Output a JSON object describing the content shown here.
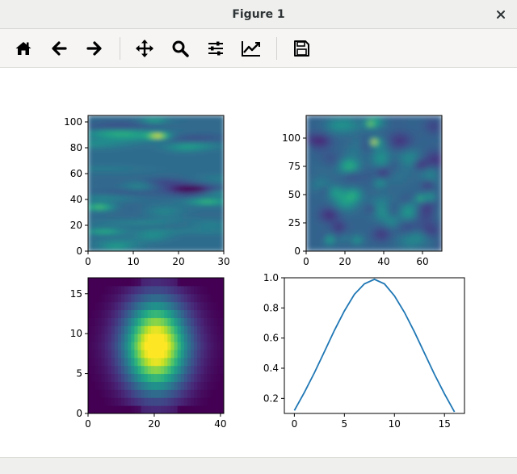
{
  "window": {
    "title": "Figure 1"
  },
  "toolbar": {
    "buttons": [
      {
        "id": "home",
        "icon": "home-icon"
      },
      {
        "id": "back",
        "icon": "arrow-left-icon"
      },
      {
        "id": "forward",
        "icon": "arrow-right-icon"
      },
      {
        "id": "pan",
        "icon": "move-icon"
      },
      {
        "id": "zoom",
        "icon": "zoom-icon"
      },
      {
        "id": "configure",
        "icon": "sliders-icon"
      },
      {
        "id": "edit",
        "icon": "chart-edit-icon"
      },
      {
        "id": "save",
        "icon": "save-icon"
      }
    ]
  },
  "chart_data": [
    {
      "type": "heatmap",
      "xlim": [
        0,
        30
      ],
      "ylim": [
        0,
        105
      ],
      "xticks": [
        "0",
        "10",
        "20",
        "30"
      ],
      "yticks": [
        "0",
        "20",
        "40",
        "60",
        "80",
        "100"
      ],
      "colormap": "viridis"
    },
    {
      "type": "heatmap",
      "xlim": [
        0,
        70
      ],
      "ylim": [
        0,
        120
      ],
      "xticks": [
        "0",
        "20",
        "40",
        "60"
      ],
      "yticks": [
        "0",
        "25",
        "50",
        "75",
        "100"
      ],
      "colormap": "viridis"
    },
    {
      "type": "heatmap",
      "xlim": [
        0,
        41
      ],
      "ylim": [
        0,
        17
      ],
      "xticks": [
        "0",
        "20",
        "40"
      ],
      "yticks": [
        "0",
        "5",
        "10",
        "15"
      ],
      "colormap": "viridis"
    },
    {
      "type": "line",
      "xlim": [
        -1,
        17
      ],
      "ylim": [
        0.1,
        1.0
      ],
      "xticks": [
        "0",
        "5",
        "10",
        "15"
      ],
      "yticks": [
        "0.2",
        "0.4",
        "0.6",
        "0.8",
        "1.0"
      ],
      "grid": false,
      "color": "#1f77b4",
      "series": [
        {
          "x": [
            0,
            1,
            2,
            3,
            4,
            5,
            6,
            7,
            8,
            9,
            10,
            11,
            12,
            13,
            14,
            15,
            16
          ],
          "values": [
            0.12,
            0.24,
            0.37,
            0.51,
            0.65,
            0.78,
            0.89,
            0.96,
            0.99,
            0.96,
            0.88,
            0.77,
            0.64,
            0.5,
            0.36,
            0.23,
            0.11
          ]
        }
      ]
    }
  ]
}
